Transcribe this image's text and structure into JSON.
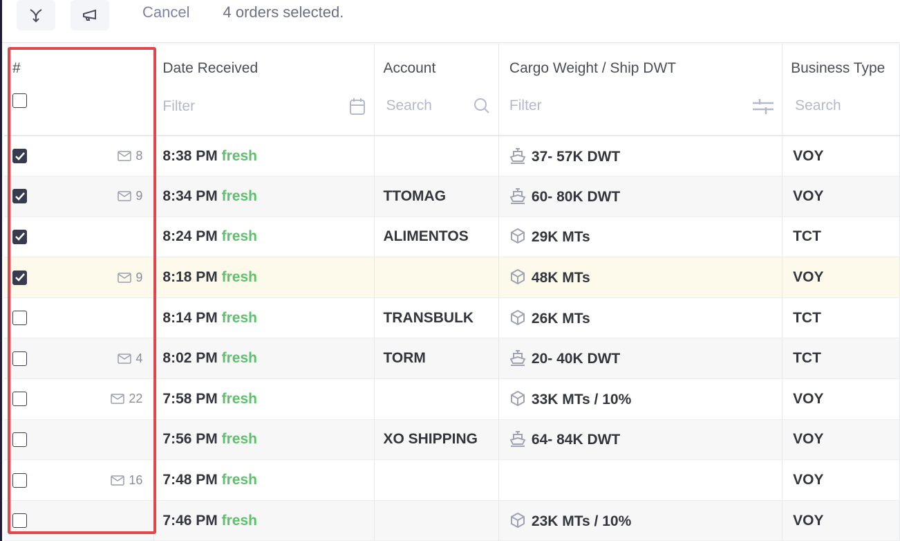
{
  "toolbar": {
    "merge_icon": "merge-arrow-icon",
    "announce_icon": "megaphone-icon",
    "cancel_label": "Cancel",
    "selection_message": "4 orders selected."
  },
  "columns": {
    "number": {
      "label": "#"
    },
    "date": {
      "label": "Date Received",
      "filter_placeholder": "Filter"
    },
    "account": {
      "label": "Account",
      "filter_placeholder": "Search"
    },
    "cargo": {
      "label": "Cargo Weight / Ship DWT",
      "filter_placeholder": "Filter"
    },
    "business": {
      "label": "Business Type",
      "filter_placeholder": "Search"
    }
  },
  "highlight_color": "#e0474c",
  "rows": [
    {
      "checked": true,
      "mail": "8",
      "time": "8:38 PM",
      "status": "fresh",
      "account": "",
      "cargo_icon": "ship",
      "cargo": "37- 57K DWT",
      "business": "VOY"
    },
    {
      "checked": true,
      "mail": "9",
      "time": "8:34 PM",
      "status": "fresh",
      "account": "TTOMAG",
      "cargo_icon": "ship",
      "cargo": "60- 80K DWT",
      "business": "VOY"
    },
    {
      "checked": true,
      "mail": "",
      "time": "8:24 PM",
      "status": "fresh",
      "account": "ALIMENTOS",
      "cargo_icon": "box",
      "cargo": "29K MTs",
      "business": "TCT"
    },
    {
      "checked": true,
      "mail": "9",
      "time": "8:18 PM",
      "status": "fresh",
      "account": "",
      "cargo_icon": "box",
      "cargo": "48K MTs",
      "business": "VOY",
      "highlighted": true
    },
    {
      "checked": false,
      "mail": "",
      "time": "8:14 PM",
      "status": "fresh",
      "account": "TRANSBULK",
      "cargo_icon": "box",
      "cargo": "26K MTs",
      "business": "TCT"
    },
    {
      "checked": false,
      "mail": "4",
      "time": "8:02 PM",
      "status": "fresh",
      "account": "TORM",
      "cargo_icon": "ship",
      "cargo": "20- 40K DWT",
      "business": "TCT"
    },
    {
      "checked": false,
      "mail": "22",
      "time": "7:58 PM",
      "status": "fresh",
      "account": "",
      "cargo_icon": "box",
      "cargo": "33K MTs / 10%",
      "business": "VOY"
    },
    {
      "checked": false,
      "mail": "",
      "time": "7:56 PM",
      "status": "fresh",
      "account": "XO SHIPPING",
      "cargo_icon": "ship",
      "cargo": "64- 84K DWT",
      "business": "VOY"
    },
    {
      "checked": false,
      "mail": "16",
      "time": "7:48 PM",
      "status": "fresh",
      "account": "",
      "cargo_icon": "",
      "cargo": "",
      "business": "VOY"
    },
    {
      "checked": false,
      "mail": "",
      "time": "7:46 PM",
      "status": "fresh",
      "account": "",
      "cargo_icon": "box",
      "cargo": "23K MTs / 10%",
      "business": "VOY"
    }
  ]
}
